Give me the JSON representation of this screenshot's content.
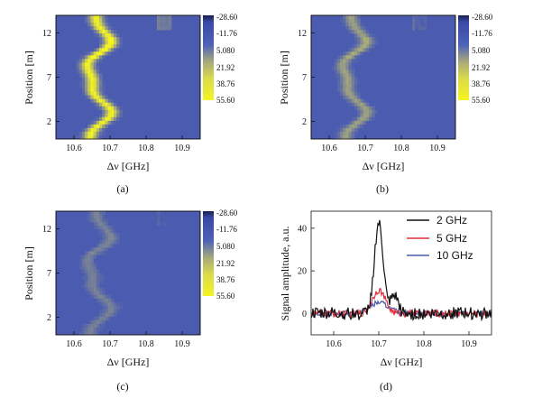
{
  "chart_data": [
    {
      "id": "a",
      "type": "heatmap",
      "caption": "(a)",
      "xlabel": "Δν [GHz]",
      "ylabel": "Position [m]",
      "xlim": [
        10.55,
        10.95
      ],
      "ylim": [
        0,
        14
      ],
      "xticks": [
        "10.6",
        "10.7",
        "10.8",
        "10.9"
      ],
      "yticks": [
        "2",
        "7",
        "12"
      ],
      "colorbar": [
        "-28.60",
        "-11.76",
        "5.080",
        "21.92",
        "38.76",
        "55.60"
      ],
      "strength": 1.0
    },
    {
      "id": "b",
      "type": "heatmap",
      "caption": "(b)",
      "xlabel": "Δν [GHz]",
      "ylabel": "Position [m]",
      "xlim": [
        10.55,
        10.95
      ],
      "ylim": [
        0,
        14
      ],
      "xticks": [
        "10.6",
        "10.7",
        "10.8",
        "10.9"
      ],
      "yticks": [
        "2",
        "7",
        "12"
      ],
      "colorbar": [
        "-28.60",
        "-11.76",
        "5.080",
        "21.92",
        "38.76",
        "55.60"
      ],
      "strength": 0.45
    },
    {
      "id": "c",
      "type": "heatmap",
      "caption": "(c)",
      "xlabel": "Δν [GHz]",
      "ylabel": "Position [m]",
      "xlim": [
        10.55,
        10.95
      ],
      "ylim": [
        0,
        14
      ],
      "xticks": [
        "10.6",
        "10.7",
        "10.8",
        "10.9"
      ],
      "yticks": [
        "2",
        "7",
        "12"
      ],
      "colorbar": [
        "-28.60",
        "-11.76",
        "5.080",
        "21.92",
        "38.76",
        "55.60"
      ],
      "strength": 0.25
    },
    {
      "id": "d",
      "type": "line",
      "caption": "(d)",
      "xlabel": "Δν [GHz]",
      "ylabel": "Signal amplitude, a.u.",
      "xlim": [
        10.55,
        10.95
      ],
      "ylim": [
        -10,
        48
      ],
      "xticks": [
        "10.6",
        "10.7",
        "10.8",
        "10.9"
      ],
      "yticks": [
        "0",
        "20",
        "40"
      ],
      "legend_position": "top-right",
      "series": [
        {
          "name": "2 GHz",
          "color": "#111111",
          "peak": 42,
          "width": 0.014,
          "noise": 3.0
        },
        {
          "name": "5 GHz",
          "color": "#e0303a",
          "peak": 11,
          "width": 0.02,
          "noise": 1.6
        },
        {
          "name": "10 GHz",
          "color": "#4a5aa8",
          "peak": 5,
          "width": 0.03,
          "noise": 1.2
        }
      ]
    }
  ]
}
